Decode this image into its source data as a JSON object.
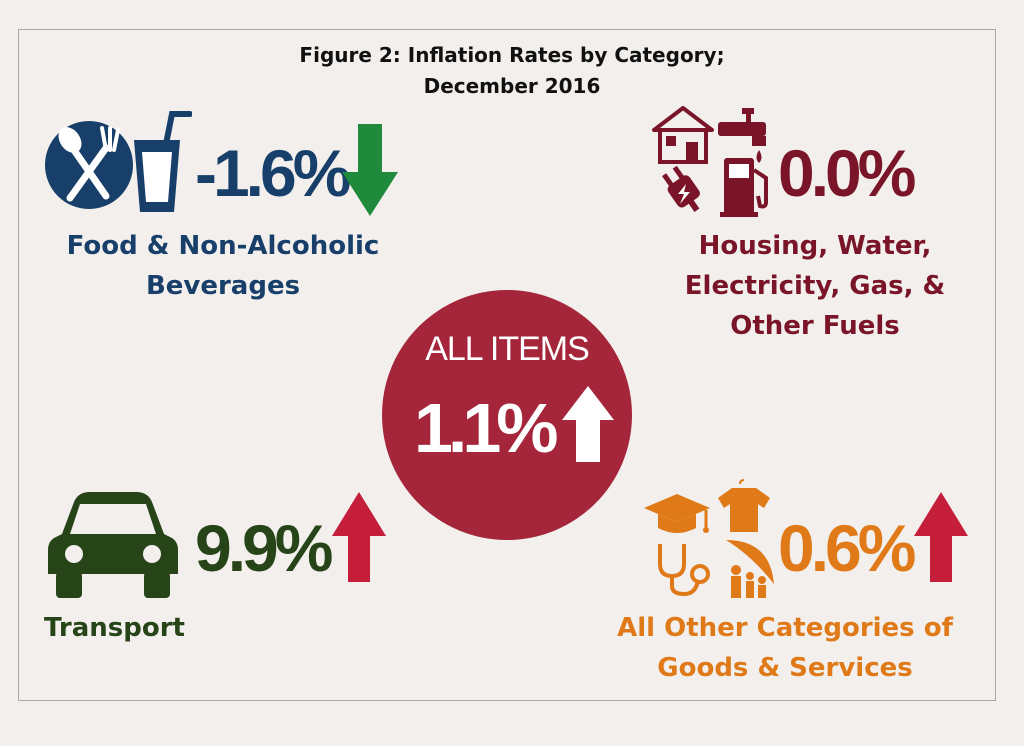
{
  "title": {
    "line1": "Figure 2: Inflation Rates by Category;",
    "line2": "December 2016"
  },
  "colors": {
    "background": "#f2efec",
    "food": "#173f6a",
    "housing": "#7a1429",
    "transport": "#274419",
    "other": "#e07a18",
    "all_items": "#a5253a",
    "arrow_up": "#c41e3a",
    "arrow_down": "#1f8a3b"
  },
  "chart_data": {
    "type": "table",
    "unit": "%",
    "categories": [
      "Food & Non-Alcoholic Beverages",
      "Housing, Water, Electricity, Gas, & Other Fuels",
      "Transport",
      "All Other Categories of Goods & Services"
    ],
    "values": [
      -1.6,
      0.0,
      9.9,
      0.6
    ],
    "all_items": {
      "label": "ALL ITEMS",
      "value": 1.1,
      "display": "1.1%",
      "direction": "up"
    },
    "items": [
      {
        "key": "food",
        "label_line1": "Food & Non-Alcoholic",
        "label_line2": "Beverages",
        "value": -1.6,
        "display": "-1.6%",
        "direction": "down",
        "icons": [
          "fork-spoon-icon",
          "drink-cup-icon"
        ]
      },
      {
        "key": "housing",
        "label_line1": "Housing, Water,",
        "label_line2": "Electricity, Gas, &",
        "label_line3": "Other Fuels",
        "value": 0.0,
        "display": "0.0%",
        "direction": "none",
        "icons": [
          "house-icon",
          "faucet-icon",
          "electric-plug-icon",
          "fuel-pump-icon"
        ]
      },
      {
        "key": "transport",
        "label_line1": "Transport",
        "value": 9.9,
        "display": "9.9%",
        "direction": "up",
        "icons": [
          "car-icon"
        ]
      },
      {
        "key": "other",
        "label_line1": "All Other Categories of",
        "label_line2": "Goods & Services",
        "value": 0.6,
        "display": "0.6%",
        "direction": "up",
        "icons": [
          "graduation-cap-icon",
          "shirt-icon",
          "stethoscope-icon",
          "umbrella-family-icon"
        ]
      }
    ]
  }
}
